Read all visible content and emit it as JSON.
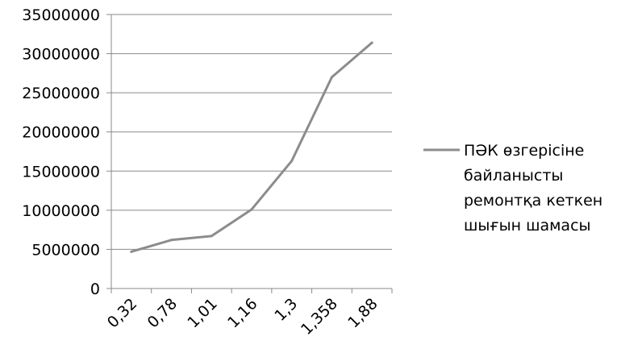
{
  "chart_data": {
    "type": "line",
    "categories": [
      "0,32",
      "0,78",
      "1,01",
      "1,16",
      "1,3",
      "1,358",
      "1,88"
    ],
    "series": [
      {
        "name": "ПӘК өзгерісіне байланысты ремонтқа кеткен шығын шамасы",
        "legend_lines": [
          "ПӘК өзгерісіне",
          "байланысты",
          "ремонтқа кеткен",
          "шығын шамасы"
        ],
        "values": [
          4700000,
          6200000,
          6700000,
          10100000,
          16300000,
          27000000,
          31400000
        ],
        "color": "#8c8c8c"
      }
    ],
    "yticks": [
      "0",
      "5000000",
      "10000000",
      "15000000",
      "20000000",
      "25000000",
      "30000000",
      "35000000"
    ],
    "ylim": [
      0,
      35000000
    ],
    "grid": "horizontal",
    "legend_position": "right"
  }
}
